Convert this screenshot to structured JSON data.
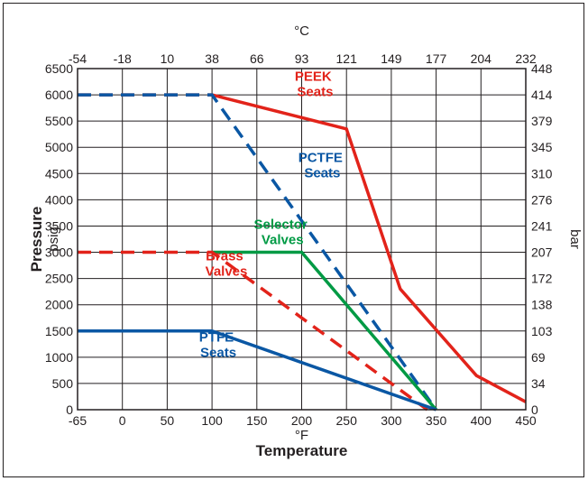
{
  "chart_data": {
    "type": "line",
    "xlabel": "Temperature",
    "x_unit": "°F",
    "x_top_unit": "°C",
    "ylabel": "Pressure",
    "y_unit": "psig",
    "y_right_unit": "bar",
    "x_ticks": [
      -65,
      0,
      50,
      100,
      150,
      200,
      250,
      300,
      350,
      400,
      450
    ],
    "x_top_ticks": [
      "-54",
      "-18",
      "10",
      "38",
      "66",
      "93",
      "121",
      "149",
      "177",
      "204",
      "232"
    ],
    "y_ticks": [
      0,
      500,
      1000,
      1500,
      2000,
      2500,
      3000,
      3500,
      4000,
      4500,
      5000,
      5500,
      6000,
      6500
    ],
    "y_right_ticks": [
      "0",
      "34",
      "69",
      "103",
      "138",
      "172",
      "207",
      "241",
      "276",
      "310",
      "345",
      "379",
      "414",
      "448"
    ],
    "xlim": [
      -65,
      450
    ],
    "ylim": [
      0,
      6500
    ],
    "grid": true,
    "series": [
      {
        "name": "PEEK Seats",
        "line1": "PEEK",
        "line2": "Seats",
        "color": "#e2231a",
        "segments": [
          {
            "style": "dashed",
            "x": [
              -65,
              100
            ],
            "y": [
              6000,
              6000
            ]
          },
          {
            "style": "solid",
            "x": [
              100,
              250,
              310,
              395,
              450
            ],
            "y": [
              6000,
              5350,
              2300,
              650,
              150
            ]
          }
        ]
      },
      {
        "name": "PCTFE Seats",
        "line1": "PCTFE",
        "line2": "Seats",
        "color": "#0a57a4",
        "segments": [
          {
            "style": "dashed",
            "x": [
              -65,
              100,
              350
            ],
            "y": [
              6000,
              6000,
              0
            ]
          }
        ]
      },
      {
        "name": "Selector Valves",
        "line1": "Selector",
        "line2": "Valves",
        "color": "#009a44",
        "segments": [
          {
            "style": "solid",
            "x": [
              100,
              200,
              350
            ],
            "y": [
              3000,
              3000,
              0
            ]
          }
        ]
      },
      {
        "name": "Brass Valves",
        "line1": "Brass",
        "line2": "Valves",
        "color": "#e2231a",
        "segments": [
          {
            "style": "dashed",
            "x": [
              -65,
              100,
              340
            ],
            "y": [
              3000,
              3000,
              0
            ]
          }
        ]
      },
      {
        "name": "PTFE Seats",
        "line1": "PTFE",
        "line2": "Seats",
        "color": "#0a57a4",
        "segments": [
          {
            "style": "solid",
            "x": [
              -65,
              100,
              350
            ],
            "y": [
              1500,
              1500,
              0
            ]
          }
        ]
      }
    ]
  }
}
